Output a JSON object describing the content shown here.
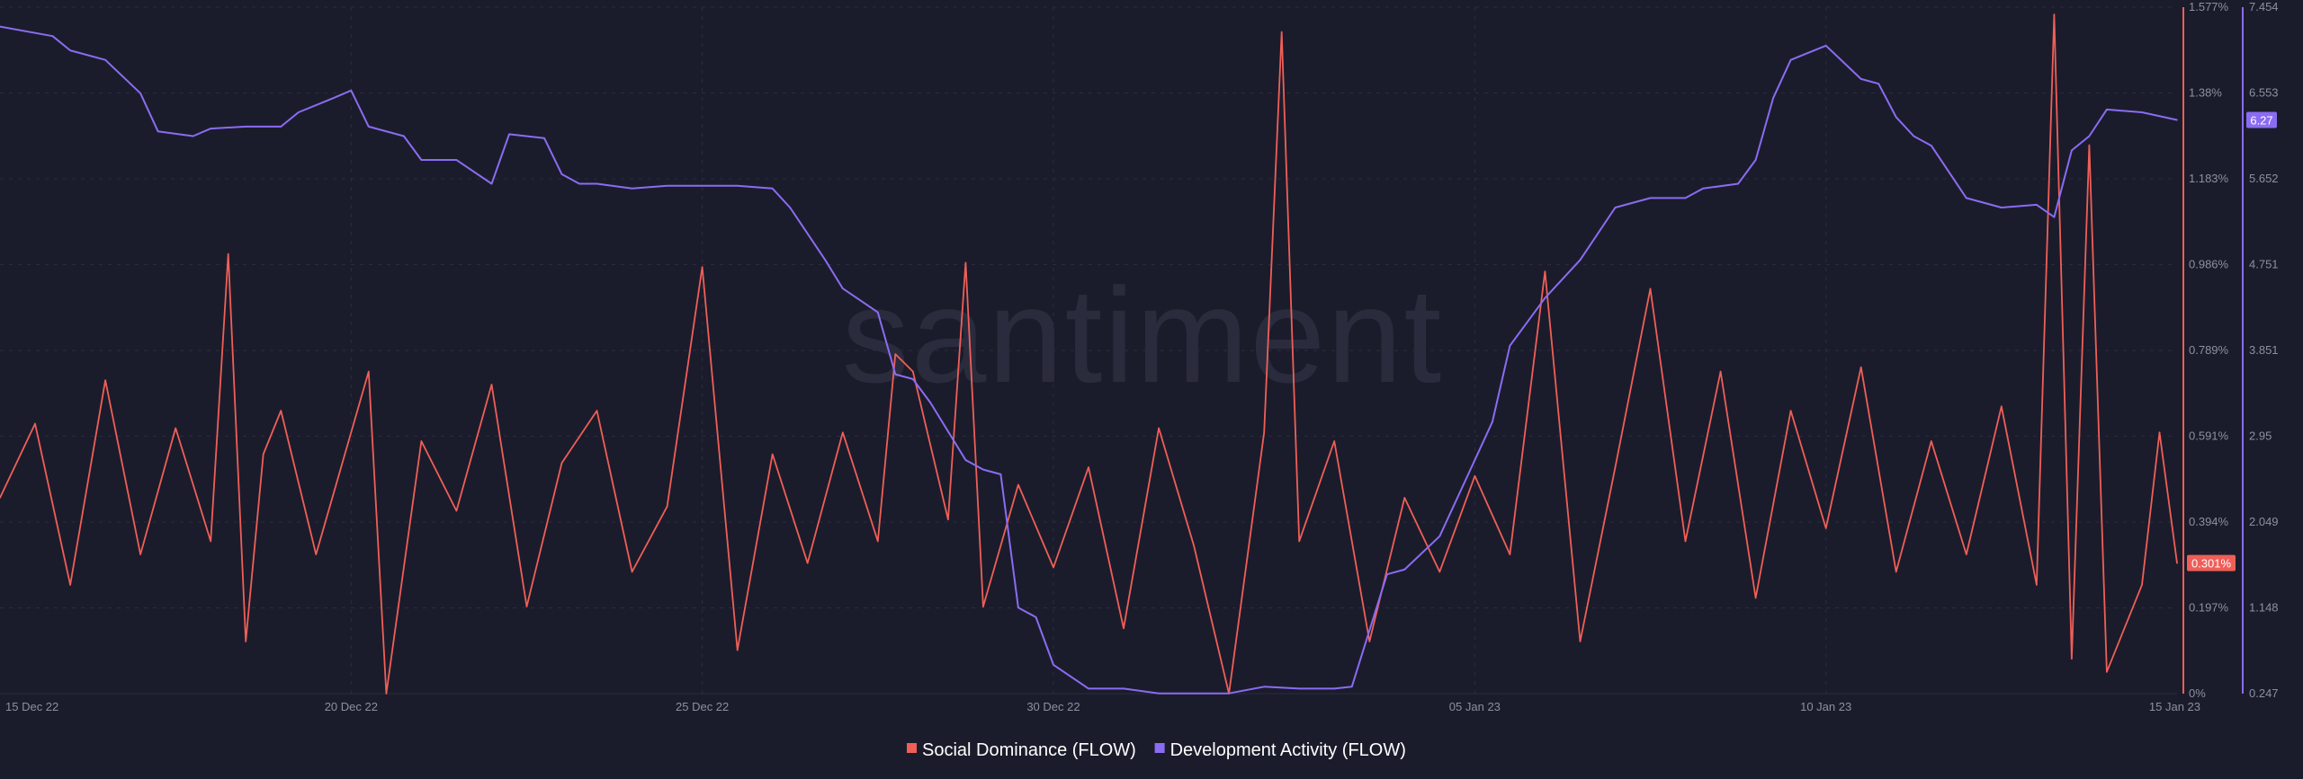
{
  "watermark": "santiment",
  "chart_data": {
    "type": "line",
    "x_ticks": [
      "15 Dec 22",
      "20 Dec 22",
      "25 Dec 22",
      "30 Dec 22",
      "05 Jan 23",
      "10 Jan 23",
      "15 Jan 23"
    ],
    "x_range": [
      "15 Dec 22",
      "15 Jan 23"
    ],
    "axes": {
      "left_percent": {
        "ticks": [
          "1.577%",
          "1.38%",
          "1.183%",
          "0.986%",
          "0.789%",
          "0.591%",
          "0.394%",
          "0.197%",
          "0%"
        ],
        "range": [
          0,
          1.577
        ]
      },
      "right_activity": {
        "ticks": [
          "7.454",
          "6.553",
          "5.652",
          "4.751",
          "3.851",
          "2.95",
          "2.049",
          "1.148",
          "0.247"
        ],
        "range": [
          0.247,
          7.454
        ]
      }
    },
    "grid": true,
    "legend_position": "bottom-center",
    "series": [
      {
        "name": "Social Dominance (FLOW)",
        "color": "#ef5f58",
        "axis": "left_percent",
        "current_value": "0.301%",
        "points": [
          [
            "15 Dec 22",
            0.45
          ],
          [
            "15 Dec 22 12:00",
            0.62
          ],
          [
            "16 Dec 22",
            0.25
          ],
          [
            "16 Dec 22 12:00",
            0.72
          ],
          [
            "17 Dec 22",
            0.32
          ],
          [
            "17 Dec 22 12:00",
            0.61
          ],
          [
            "18 Dec 22",
            0.35
          ],
          [
            "18 Dec 22 06:00",
            1.01
          ],
          [
            "18 Dec 22 12:00",
            0.12
          ],
          [
            "18 Dec 22 18:00",
            0.55
          ],
          [
            "19 Dec 22",
            0.65
          ],
          [
            "19 Dec 22 12:00",
            0.32
          ],
          [
            "20 Dec 22",
            0.6
          ],
          [
            "20 Dec 22 06:00",
            0.74
          ],
          [
            "20 Dec 22 12:00",
            0.0
          ],
          [
            "21 Dec 22",
            0.58
          ],
          [
            "21 Dec 22 12:00",
            0.42
          ],
          [
            "22 Dec 22",
            0.71
          ],
          [
            "22 Dec 22 12:00",
            0.2
          ],
          [
            "23 Dec 22",
            0.53
          ],
          [
            "23 Dec 22 12:00",
            0.65
          ],
          [
            "24 Dec 22",
            0.28
          ],
          [
            "24 Dec 22 12:00",
            0.43
          ],
          [
            "25 Dec 22",
            0.98
          ],
          [
            "25 Dec 22 12:00",
            0.1
          ],
          [
            "26 Dec 22",
            0.55
          ],
          [
            "26 Dec 22 12:00",
            0.3
          ],
          [
            "27 Dec 22",
            0.6
          ],
          [
            "27 Dec 22 12:00",
            0.35
          ],
          [
            "27 Dec 22 18:00",
            0.78
          ],
          [
            "28 Dec 22",
            0.74
          ],
          [
            "28 Dec 22 12:00",
            0.4
          ],
          [
            "28 Dec 22 18:00",
            0.99
          ],
          [
            "29 Dec 22",
            0.2
          ],
          [
            "29 Dec 22 12:00",
            0.48
          ],
          [
            "30 Dec 22",
            0.29
          ],
          [
            "30 Dec 22 12:00",
            0.52
          ],
          [
            "31 Dec 22",
            0.15
          ],
          [
            "31 Dec 22 12:00",
            0.61
          ],
          [
            "01 Jan 23",
            0.34
          ],
          [
            "01 Jan 23 12:00",
            0.0
          ],
          [
            "02 Jan 23",
            0.6
          ],
          [
            "02 Jan 23 06:00",
            1.52
          ],
          [
            "02 Jan 23 12:00",
            0.35
          ],
          [
            "03 Jan 23",
            0.58
          ],
          [
            "03 Jan 23 12:00",
            0.12
          ],
          [
            "04 Jan 23",
            0.45
          ],
          [
            "04 Jan 23 12:00",
            0.28
          ],
          [
            "05 Jan 23",
            0.5
          ],
          [
            "05 Jan 23 12:00",
            0.32
          ],
          [
            "06 Jan 23",
            0.97
          ],
          [
            "06 Jan 23 12:00",
            0.12
          ],
          [
            "07 Jan 23",
            0.52
          ],
          [
            "07 Jan 23 12:00",
            0.93
          ],
          [
            "08 Jan 23",
            0.35
          ],
          [
            "08 Jan 23 12:00",
            0.74
          ],
          [
            "09 Jan 23",
            0.22
          ],
          [
            "09 Jan 23 12:00",
            0.65
          ],
          [
            "10 Jan 23",
            0.38
          ],
          [
            "10 Jan 23 12:00",
            0.75
          ],
          [
            "11 Jan 23",
            0.28
          ],
          [
            "11 Jan 23 12:00",
            0.58
          ],
          [
            "12 Jan 23",
            0.32
          ],
          [
            "12 Jan 23 12:00",
            0.66
          ],
          [
            "13 Jan 23",
            0.25
          ],
          [
            "13 Jan 23 06:00",
            1.56
          ],
          [
            "13 Jan 23 12:00",
            0.08
          ],
          [
            "13 Jan 23 18:00",
            1.26
          ],
          [
            "14 Jan 23",
            0.05
          ],
          [
            "14 Jan 23 12:00",
            0.25
          ],
          [
            "14 Jan 23 18:00",
            0.6
          ],
          [
            "15 Jan 23",
            0.3
          ]
        ]
      },
      {
        "name": "Development Activity (FLOW)",
        "color": "#8a6cf2",
        "axis": "right_activity",
        "current_value": "6.27",
        "points": [
          [
            "15 Dec 22",
            7.25
          ],
          [
            "15 Dec 22 18:00",
            7.15
          ],
          [
            "16 Dec 22",
            7.0
          ],
          [
            "16 Dec 22 12:00",
            6.9
          ],
          [
            "17 Dec 22",
            6.55
          ],
          [
            "17 Dec 22 06:00",
            6.15
          ],
          [
            "17 Dec 22 18:00",
            6.1
          ],
          [
            "18 Dec 22",
            6.18
          ],
          [
            "18 Dec 22 12:00",
            6.2
          ],
          [
            "19 Dec 22",
            6.2
          ],
          [
            "19 Dec 22 06:00",
            6.35
          ],
          [
            "19 Dec 22 18:00",
            6.5
          ],
          [
            "20 Dec 22",
            6.58
          ],
          [
            "20 Dec 22 06:00",
            6.2
          ],
          [
            "20 Dec 22 18:00",
            6.1
          ],
          [
            "21 Dec 22",
            5.85
          ],
          [
            "21 Dec 22 12:00",
            5.85
          ],
          [
            "22 Dec 22",
            5.6
          ],
          [
            "22 Dec 22 06:00",
            6.12
          ],
          [
            "22 Dec 22 18:00",
            6.08
          ],
          [
            "23 Dec 22",
            5.7
          ],
          [
            "23 Dec 22 06:00",
            5.6
          ],
          [
            "23 Dec 22 12:00",
            5.6
          ],
          [
            "24 Dec 22",
            5.55
          ],
          [
            "24 Dec 22 12:00",
            5.58
          ],
          [
            "25 Dec 22",
            5.58
          ],
          [
            "25 Dec 22 12:00",
            5.58
          ],
          [
            "26 Dec 22",
            5.55
          ],
          [
            "26 Dec 22 06:00",
            5.35
          ],
          [
            "26 Dec 22 18:00",
            4.8
          ],
          [
            "27 Dec 22",
            4.5
          ],
          [
            "27 Dec 22 12:00",
            4.25
          ],
          [
            "27 Dec 22 18:00",
            3.6
          ],
          [
            "28 Dec 22",
            3.55
          ],
          [
            "28 Dec 22 06:00",
            3.3
          ],
          [
            "28 Dec 22 18:00",
            2.7
          ],
          [
            "29 Dec 22",
            2.6
          ],
          [
            "29 Dec 22 06:00",
            2.55
          ],
          [
            "29 Dec 22 12:00",
            1.15
          ],
          [
            "29 Dec 22 18:00",
            1.05
          ],
          [
            "30 Dec 22",
            0.55
          ],
          [
            "30 Dec 22 12:00",
            0.3
          ],
          [
            "31 Dec 22",
            0.3
          ],
          [
            "31 Dec 22 12:00",
            0.25
          ],
          [
            "01 Jan 23",
            0.25
          ],
          [
            "01 Jan 23 12:00",
            0.25
          ],
          [
            "02 Jan 23",
            0.32
          ],
          [
            "02 Jan 23 12:00",
            0.3
          ],
          [
            "03 Jan 23",
            0.3
          ],
          [
            "03 Jan 23 06:00",
            0.32
          ],
          [
            "03 Jan 23 18:00",
            1.5
          ],
          [
            "04 Jan 23",
            1.55
          ],
          [
            "04 Jan 23 12:00",
            1.9
          ],
          [
            "05 Jan 23",
            2.7
          ],
          [
            "05 Jan 23 06:00",
            3.1
          ],
          [
            "05 Jan 23 12:00",
            3.9
          ],
          [
            "06 Jan 23",
            4.4
          ],
          [
            "06 Jan 23 12:00",
            4.8
          ],
          [
            "07 Jan 23",
            5.35
          ],
          [
            "07 Jan 23 12:00",
            5.45
          ],
          [
            "08 Jan 23",
            5.45
          ],
          [
            "08 Jan 23 06:00",
            5.55
          ],
          [
            "08 Jan 23 18:00",
            5.6
          ],
          [
            "09 Jan 23",
            5.85
          ],
          [
            "09 Jan 23 06:00",
            6.5
          ],
          [
            "09 Jan 23 12:00",
            6.9
          ],
          [
            "10 Jan 23",
            7.05
          ],
          [
            "10 Jan 23 12:00",
            6.7
          ],
          [
            "10 Jan 23 18:00",
            6.65
          ],
          [
            "11 Jan 23",
            6.3
          ],
          [
            "11 Jan 23 06:00",
            6.1
          ],
          [
            "11 Jan 23 12:00",
            6.0
          ],
          [
            "12 Jan 23",
            5.45
          ],
          [
            "12 Jan 23 12:00",
            5.35
          ],
          [
            "13 Jan 23",
            5.38
          ],
          [
            "13 Jan 23 06:00",
            5.25
          ],
          [
            "13 Jan 23 12:00",
            5.95
          ],
          [
            "13 Jan 23 18:00",
            6.1
          ],
          [
            "14 Jan 23",
            6.38
          ],
          [
            "14 Jan 23 12:00",
            6.35
          ],
          [
            "15 Jan 23",
            6.27
          ]
        ]
      }
    ]
  },
  "legend": [
    {
      "label": "Social Dominance (FLOW)",
      "color": "#ef5f58"
    },
    {
      "label": "Development Activity (FLOW)",
      "color": "#8a6cf2"
    }
  ]
}
